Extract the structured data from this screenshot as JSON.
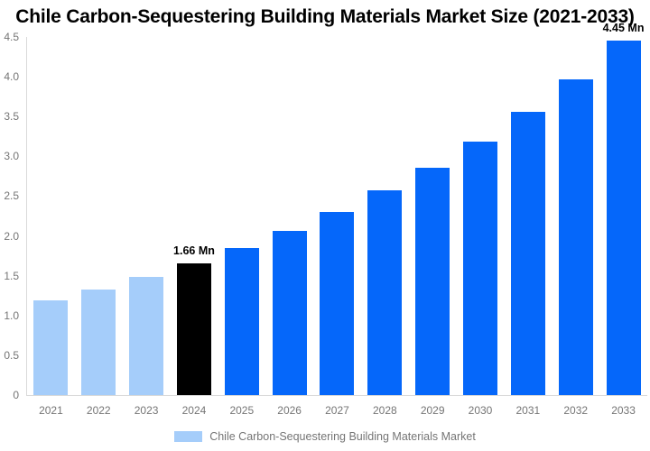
{
  "title": "Chile Carbon-Sequestering Building Materials Market Size (2021-2033)",
  "chart_data": {
    "type": "bar",
    "title": "Chile Carbon-Sequestering Building Materials Market Size (2021-2033)",
    "xlabel": "",
    "ylabel": "",
    "unit": "Mn",
    "categories": [
      "2021",
      "2022",
      "2023",
      "2024",
      "2025",
      "2026",
      "2027",
      "2028",
      "2029",
      "2030",
      "2031",
      "2032",
      "2033"
    ],
    "values": [
      1.19,
      1.33,
      1.48,
      1.66,
      1.85,
      2.06,
      2.3,
      2.57,
      2.86,
      3.19,
      3.56,
      3.97,
      4.45
    ],
    "bar_colors": [
      "#A5CDFA",
      "#A5CDFA",
      "#A5CDFA",
      "#000000",
      "#0567FA",
      "#0567FA",
      "#0567FA",
      "#0567FA",
      "#0567FA",
      "#0567FA",
      "#0567FA",
      "#0567FA",
      "#0567FA"
    ],
    "data_labels": [
      null,
      null,
      null,
      "1.66 Mn",
      null,
      null,
      null,
      null,
      null,
      null,
      null,
      null,
      "4.45 Mn"
    ],
    "ylim": [
      0,
      4.5
    ],
    "yticks": [
      "4.5",
      "4.0",
      "3.5",
      "3.0",
      "2.5",
      "2.0",
      "1.5",
      "1.0",
      "0.5",
      "0"
    ],
    "grid": false,
    "legend": {
      "position": "bottom",
      "label": "Chile Carbon-Sequestering Building Materials Market",
      "swatch_color": "#A5CDFA"
    }
  },
  "colors": {
    "background": "#FFFFFF",
    "title_text": "#000000",
    "axis_line": "#D9D9D9",
    "tick_text": "#757575",
    "data_label_text": "#000000",
    "past_bar": "#A5CDFA",
    "current_bar": "#000000",
    "forecast_bar": "#0567FA"
  }
}
